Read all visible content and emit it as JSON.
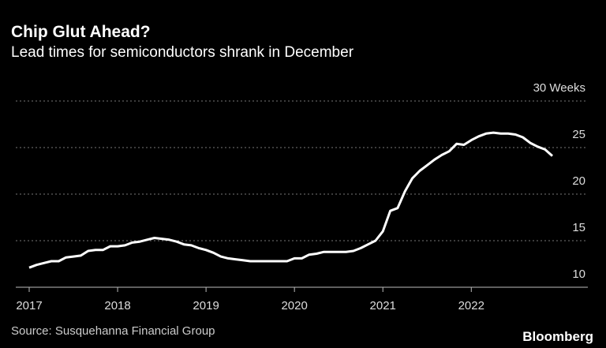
{
  "title": "Chip Glut Ahead?",
  "subtitle": "Lead times for semiconductors shrank in December",
  "source": "Source: Susquehanna Financial Group",
  "brand": "Bloomberg",
  "chart_data": {
    "type": "line",
    "categories": [
      "2017",
      null,
      null,
      null,
      null,
      null,
      null,
      null,
      null,
      null,
      null,
      null,
      "2018",
      null,
      null,
      null,
      null,
      null,
      null,
      null,
      null,
      null,
      null,
      null,
      "2019",
      null,
      null,
      null,
      null,
      null,
      null,
      null,
      null,
      null,
      null,
      null,
      "2020",
      null,
      null,
      null,
      null,
      null,
      null,
      null,
      null,
      null,
      null,
      null,
      "2021",
      null,
      null,
      null,
      null,
      null,
      null,
      null,
      null,
      null,
      null,
      null,
      "2022",
      null,
      null,
      null,
      null,
      null,
      null,
      null,
      null,
      null,
      null,
      null
    ],
    "series": [
      {
        "color": "#ffffff",
        "values": [
          12.1,
          12.4,
          12.6,
          12.8,
          12.8,
          13.2,
          13.3,
          13.4,
          13.9,
          14.0,
          14.0,
          14.4,
          14.4,
          14.5,
          14.8,
          14.9,
          15.1,
          15.3,
          15.2,
          15.1,
          14.9,
          14.6,
          14.5,
          14.2,
          14.0,
          13.7,
          13.3,
          13.1,
          13.0,
          12.9,
          12.8,
          12.8,
          12.8,
          12.8,
          12.8,
          12.8,
          13.1,
          13.1,
          13.5,
          13.6,
          13.8,
          13.8,
          13.8,
          13.8,
          13.9,
          14.2,
          14.6,
          15.0,
          16.0,
          18.2,
          18.5,
          20.3,
          21.7,
          22.5,
          23.1,
          23.7,
          24.2,
          24.6,
          25.4,
          25.3,
          25.8,
          26.2,
          26.5,
          26.6,
          26.5,
          26.5,
          26.4,
          26.1,
          25.5,
          25.1,
          24.8,
          24.1
        ]
      }
    ],
    "ylim": [
      10,
      30
    ],
    "yticks": [
      10,
      15,
      20,
      25,
      {
        "value": 30,
        "label": "30 Weeks"
      }
    ],
    "grid": true
  }
}
